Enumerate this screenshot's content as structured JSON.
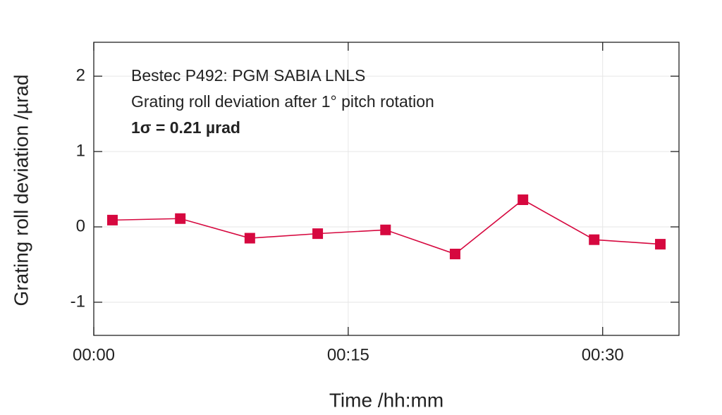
{
  "chart_data": {
    "type": "line",
    "x_label": "Time /hh:mm",
    "y_label": "Grating roll deviation /µrad",
    "annotations": [
      "Bestec P492: PGM SABIA LNLS",
      "Grating roll deviation after 1° pitch rotation",
      "1σ = 0.21 µrad"
    ],
    "x": [
      1.1,
      5.1,
      9.2,
      13.2,
      17.2,
      21.3,
      25.3,
      29.5,
      33.4
    ],
    "series": [
      {
        "name": "Grating roll deviation",
        "color": "#d6083f",
        "values": [
          0.09,
          0.11,
          -0.15,
          -0.09,
          -0.04,
          -0.36,
          0.36,
          -0.17,
          -0.23
        ]
      }
    ],
    "xlim": [
      0,
      34.5
    ],
    "xticks": [
      {
        "value": 0,
        "label": "00:00"
      },
      {
        "value": 15,
        "label": "00:15"
      },
      {
        "value": 30,
        "label": "00:30"
      }
    ],
    "ylim": [
      -1.44,
      2.45
    ],
    "yticks": [
      -1,
      0,
      1,
      2
    ],
    "grid": true
  }
}
